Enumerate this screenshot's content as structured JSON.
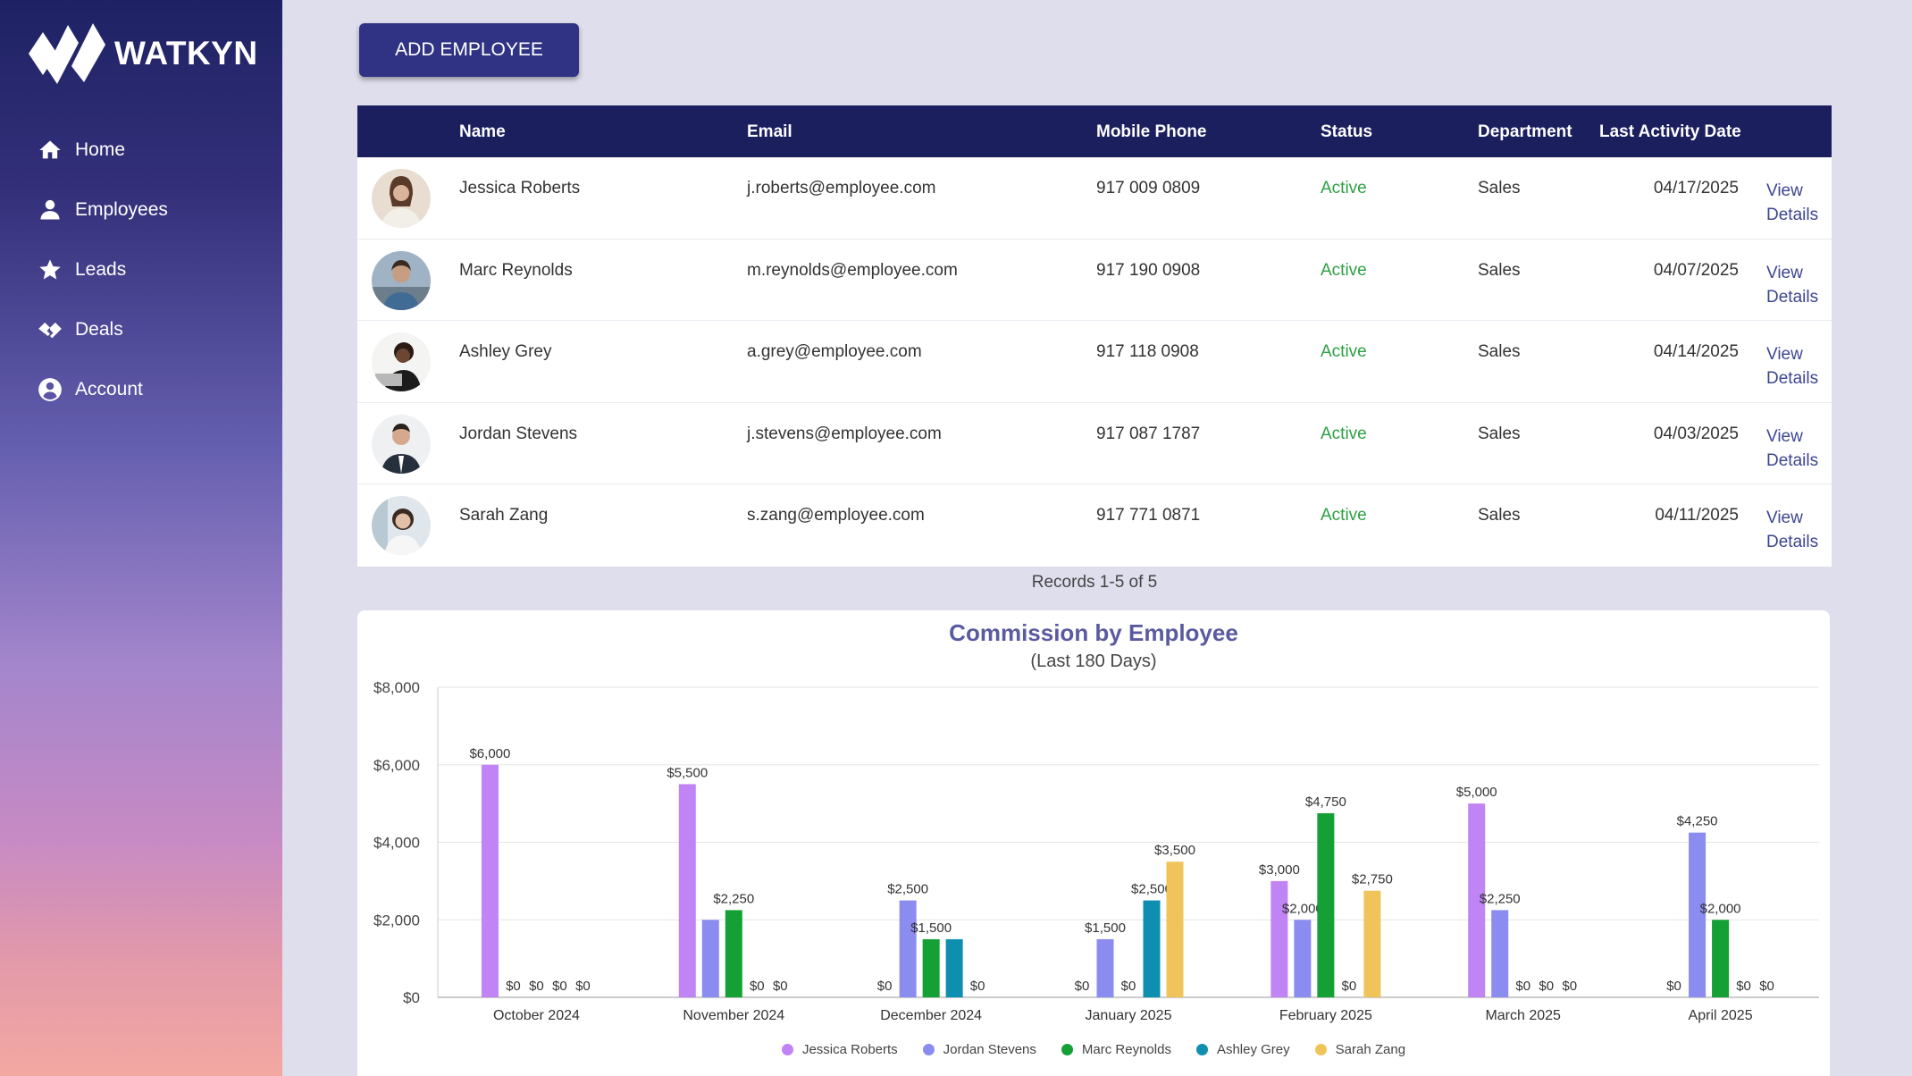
{
  "brand": {
    "name": "WATKYN"
  },
  "sidebar": {
    "items": [
      {
        "label": "Home",
        "icon": "home-icon"
      },
      {
        "label": "Employees",
        "icon": "person-icon"
      },
      {
        "label": "Leads",
        "icon": "star-icon"
      },
      {
        "label": "Deals",
        "icon": "handshake-icon"
      },
      {
        "label": "Account",
        "icon": "account-circle-icon"
      }
    ]
  },
  "toolbar": {
    "add_label": "ADD EMPLOYEE"
  },
  "table": {
    "columns": [
      "Name",
      "Email",
      "Mobile Phone",
      "Status",
      "Department",
      "Last Activity Date"
    ],
    "rows": [
      {
        "name": "Jessica Roberts",
        "email": "j.roberts@employee.com",
        "phone": "917 009 0809",
        "status": "Active",
        "department": "Sales",
        "date": "04/17/2025",
        "link": "View Details"
      },
      {
        "name": "Marc Reynolds",
        "email": "m.reynolds@employee.com",
        "phone": "917 190 0908",
        "status": "Active",
        "department": "Sales",
        "date": "04/07/2025",
        "link": "View Details"
      },
      {
        "name": "Ashley Grey",
        "email": "a.grey@employee.com",
        "phone": "917 118 0908",
        "status": "Active",
        "department": "Sales",
        "date": "04/14/2025",
        "link": "View Details"
      },
      {
        "name": "Jordan Stevens",
        "email": "j.stevens@employee.com",
        "phone": "917 087 1787",
        "status": "Active",
        "department": "Sales",
        "date": "04/03/2025",
        "link": "View Details"
      },
      {
        "name": "Sarah Zang",
        "email": "s.zang@employee.com",
        "phone": "917 771 0871",
        "status": "Active",
        "department": "Sales",
        "date": "04/11/2025",
        "link": "View Details"
      }
    ],
    "records_label": "Records 1-5 of 5"
  },
  "colors": {
    "sidebar_dark": "#1e2264",
    "header": "#1b1f5e",
    "active_status": "#2ea043",
    "link": "#3d4691"
  },
  "chart_data": {
    "type": "bar",
    "title": "Commission by Employee",
    "subtitle": "(Last 180 Days)",
    "categories": [
      "October 2024",
      "November 2024",
      "December 2024",
      "January 2025",
      "February 2025",
      "March 2025",
      "April 2025"
    ],
    "ylim": [
      0,
      8000
    ],
    "yticks": [
      "$0",
      "$2,000",
      "$4,000",
      "$6,000",
      "$8,000"
    ],
    "grid": true,
    "legend_position": "bottom",
    "series": [
      {
        "name": "Jessica Roberts",
        "color": "#c084f5",
        "values": [
          6000,
          5500,
          0,
          0,
          3000,
          5000,
          0
        ],
        "labels": [
          "$6,000",
          "$5,500",
          "$0",
          "$0",
          "$3,000",
          "$5,000",
          "$0"
        ]
      },
      {
        "name": "Jordan Stevens",
        "color": "#8b8cf0",
        "values": [
          0,
          2000,
          2500,
          1500,
          2000,
          2250,
          4250
        ],
        "labels": [
          "$0",
          "",
          "$2,500",
          "$1,500",
          "$2,000",
          "$2,250",
          "$4,250"
        ]
      },
      {
        "name": "Marc Reynolds",
        "color": "#15a035",
        "values": [
          0,
          2250,
          1500,
          0,
          4750,
          0,
          2000
        ],
        "labels": [
          "$0",
          "$2,250",
          "$1,500",
          "$0",
          "$4,750",
          "$0",
          "$2,000"
        ]
      },
      {
        "name": "Ashley Grey",
        "color": "#0e8fb0",
        "values": [
          0,
          0,
          1500,
          2500,
          0,
          0,
          0
        ],
        "labels": [
          "$0",
          "$0",
          "",
          "$2,500",
          "$0",
          "$0",
          "$0"
        ]
      },
      {
        "name": "Sarah Zang",
        "color": "#f0c45a",
        "values": [
          0,
          0,
          0,
          3500,
          2750,
          0,
          0
        ],
        "labels": [
          "$0",
          "$0",
          "$0",
          "$3,500",
          "$2,750",
          "$0",
          "$0"
        ]
      }
    ]
  }
}
